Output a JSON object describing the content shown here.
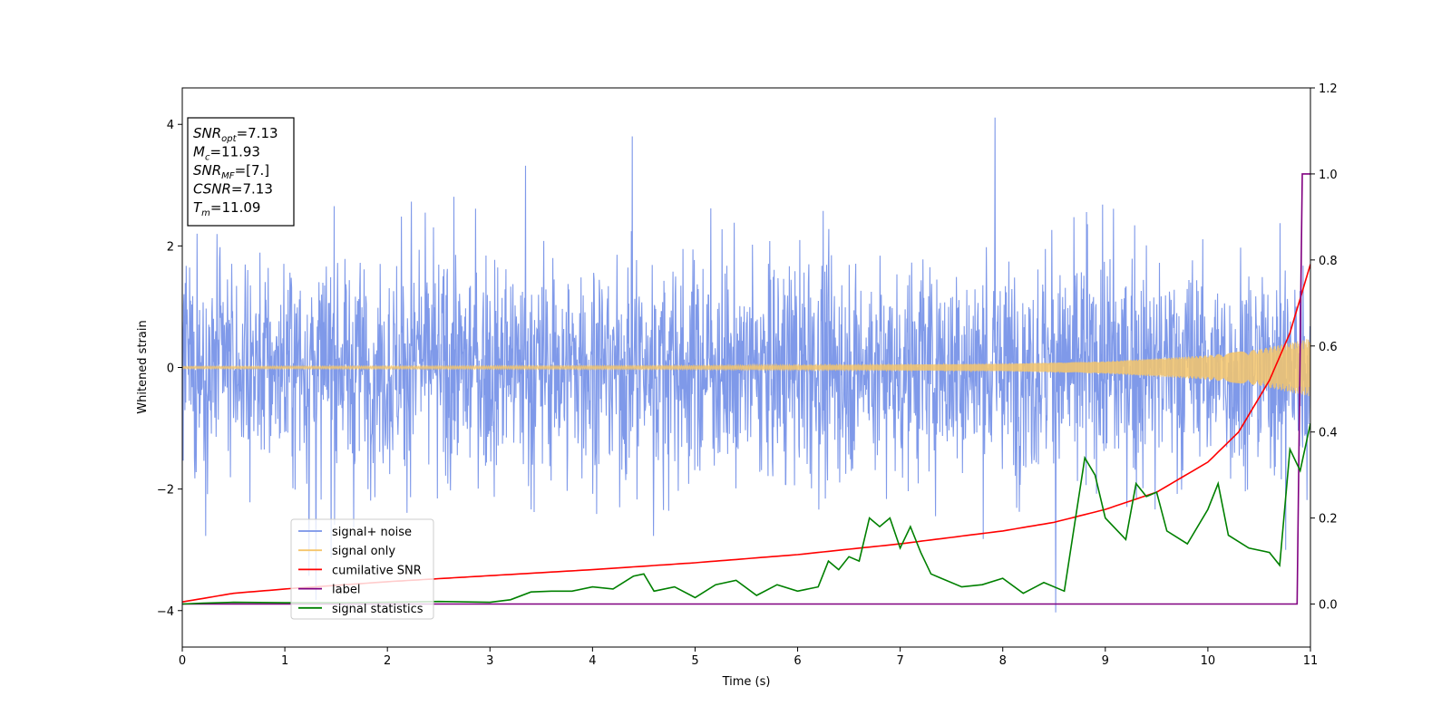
{
  "chart_data": {
    "type": "line",
    "xlabel": "Time (s)",
    "ylabel_left": "Whitened strain",
    "ylabel_right": "",
    "xlim": [
      0,
      11
    ],
    "ylim_left": [
      -4.6,
      4.6
    ],
    "ylim_right": [
      -0.1,
      1.2
    ],
    "xticks": [
      0,
      1,
      2,
      3,
      4,
      5,
      6,
      7,
      8,
      9,
      10,
      11
    ],
    "yticks_left": [
      4,
      2,
      0,
      -2,
      -4
    ],
    "yticks_right": [
      1.2,
      1.0,
      0.8,
      0.6,
      0.4,
      0.2,
      0.0
    ],
    "ytick_labels_right": [
      "1.2",
      "1.0",
      "0.8",
      "0.6",
      "0.4",
      "0.2",
      "0.0"
    ],
    "grid": false,
    "legend_position": "lower-left",
    "info_box": {
      "position": "top-left",
      "lines": [
        {
          "sym": "SNR",
          "sub": "opt",
          "rest": "=7.13"
        },
        {
          "sym": "M",
          "sub": "c",
          "rest": "=11.93"
        },
        {
          "sym": "SNR",
          "sub": "MF",
          "rest": "=[7.]"
        },
        {
          "sym": "CSNR",
          "sub": "",
          "rest": "=7.13"
        },
        {
          "sym": "T",
          "sub": "m",
          "rest": "=11.09"
        }
      ]
    },
    "series": [
      {
        "name": "signal+ noise",
        "axis": "left",
        "color": "#7893e8",
        "kind": "noise_band",
        "description_values": {
          "typical_abs": 1.4,
          "max": 4.18,
          "min": -4.15
        }
      },
      {
        "name": "signal only",
        "axis": "left",
        "color": "#f5c56b",
        "kind": "chirp_envelope",
        "envelope": {
          "x": [
            0,
            5,
            8,
            9,
            10,
            10.5,
            11
          ],
          "y": [
            0.02,
            0.03,
            0.06,
            0.1,
            0.2,
            0.3,
            0.48
          ]
        }
      },
      {
        "name": "cumilative SNR",
        "axis": "right",
        "color": "#ff0000",
        "x": [
          0,
          0.5,
          1,
          2,
          3,
          4,
          5,
          6,
          7,
          7.5,
          8,
          8.5,
          9,
          9.5,
          10,
          10.3,
          10.6,
          10.8,
          11
        ],
        "y": [
          0.005,
          0.025,
          0.035,
          0.052,
          0.066,
          0.08,
          0.096,
          0.115,
          0.14,
          0.155,
          0.17,
          0.19,
          0.22,
          0.26,
          0.33,
          0.4,
          0.52,
          0.63,
          0.79
        ]
      },
      {
        "name": "label",
        "axis": "right",
        "color": "#800080",
        "x": [
          0,
          10.87,
          10.92,
          11
        ],
        "y": [
          0.0,
          0.0,
          1.0,
          1.0
        ]
      },
      {
        "name": "signal statistics",
        "axis": "right",
        "color": "#008000",
        "x": [
          0,
          0.2,
          0.5,
          1,
          1.5,
          2,
          2.5,
          3,
          3.2,
          3.4,
          3.6,
          3.8,
          4.0,
          4.2,
          4.4,
          4.5,
          4.6,
          4.8,
          5.0,
          5.2,
          5.4,
          5.6,
          5.8,
          6.0,
          6.2,
          6.3,
          6.4,
          6.5,
          6.6,
          6.7,
          6.8,
          6.9,
          7.0,
          7.1,
          7.2,
          7.3,
          7.4,
          7.6,
          7.8,
          8.0,
          8.2,
          8.4,
          8.6,
          8.8,
          8.9,
          9.0,
          9.2,
          9.3,
          9.4,
          9.5,
          9.6,
          9.8,
          10.0,
          10.1,
          10.2,
          10.4,
          10.6,
          10.7,
          10.8,
          10.9,
          11.0
        ],
        "y": [
          0.0,
          0.002,
          0.004,
          0.003,
          0.003,
          0.004,
          0.006,
          0.004,
          0.01,
          0.028,
          0.03,
          0.03,
          0.04,
          0.035,
          0.065,
          0.07,
          0.03,
          0.04,
          0.015,
          0.045,
          0.055,
          0.02,
          0.045,
          0.03,
          0.04,
          0.1,
          0.08,
          0.11,
          0.1,
          0.2,
          0.18,
          0.2,
          0.13,
          0.18,
          0.12,
          0.07,
          0.06,
          0.04,
          0.045,
          0.06,
          0.025,
          0.05,
          0.03,
          0.34,
          0.3,
          0.2,
          0.15,
          0.28,
          0.25,
          0.26,
          0.17,
          0.14,
          0.22,
          0.28,
          0.16,
          0.13,
          0.12,
          0.09,
          0.36,
          0.31,
          0.42
        ]
      }
    ]
  }
}
